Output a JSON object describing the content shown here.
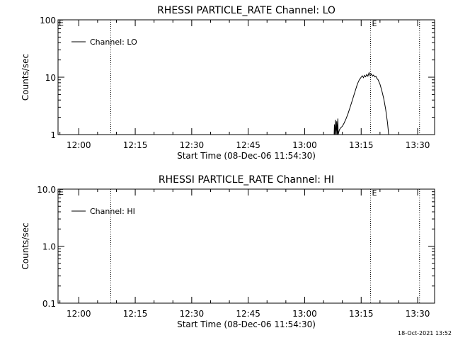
{
  "footer": {
    "timestamp": "18-Oct-2021 13:52"
  },
  "chart_data": [
    {
      "type": "line",
      "title": "RHESSI PARTICLE_RATE Channel: LO",
      "xlabel": "Start Time (08-Dec-06 11:54:30)",
      "ylabel": "Counts/sec",
      "yscale": "log",
      "ylim": [
        1,
        100
      ],
      "y_ticks": [
        {
          "v": 1,
          "label": "1"
        },
        {
          "v": 10,
          "label": "10"
        },
        {
          "v": 100,
          "label": "100"
        }
      ],
      "x_ticks": [
        "12:00",
        "12:15",
        "12:30",
        "12:45",
        "13:00",
        "13:15",
        "13:30"
      ],
      "x_unit": "minutes since 12:00",
      "xlim": [
        -5.5,
        94.5
      ],
      "legend": {
        "label": "Channel: LO",
        "placement": "top-left"
      },
      "markers": [
        {
          "x": 8.5,
          "style": "dotted"
        },
        {
          "x": 77.5,
          "style": "dotted",
          "label": "E"
        },
        {
          "x": 90.5,
          "style": "dotted"
        }
      ],
      "corner_label": "E",
      "series": [
        {
          "x": [
            67.8,
            67.9,
            68.0,
            68.2,
            68.3,
            68.4,
            68.5,
            68.7,
            68.8,
            68.9,
            69.2,
            69.5,
            70.0,
            70.5,
            71.0,
            71.5,
            72.0,
            72.5,
            73.0,
            73.5,
            74.0,
            74.5,
            75.0,
            75.3,
            75.6,
            75.9,
            76.2,
            76.5,
            76.8,
            77.1,
            77.4,
            77.7,
            78.0,
            78.3,
            78.6,
            78.9,
            79.2,
            79.5,
            80.0,
            80.5,
            81.0,
            81.5,
            82.0,
            82.3
          ],
          "y": [
            1.0,
            1.5,
            1.0,
            1.8,
            1.0,
            1.0,
            1.7,
            1.0,
            1.9,
            1.0,
            1.2,
            1.3,
            1.4,
            1.6,
            1.9,
            2.3,
            2.9,
            3.7,
            4.7,
            6.0,
            7.6,
            9.0,
            10.0,
            10.6,
            9.8,
            10.8,
            10.2,
            11.2,
            10.4,
            12.0,
            10.6,
            11.4,
            10.5,
            10.9,
            10.1,
            10.4,
            9.5,
            9.0,
            7.5,
            5.8,
            4.2,
            2.8,
            1.6,
            1.0
          ]
        }
      ]
    },
    {
      "type": "line",
      "title": "RHESSI PARTICLE_RATE Channel: HI",
      "xlabel": "Start Time (08-Dec-06 11:54:30)",
      "ylabel": "Counts/sec",
      "yscale": "log",
      "ylim": [
        0.1,
        10
      ],
      "y_ticks": [
        {
          "v": 0.1,
          "label": "0.1"
        },
        {
          "v": 1,
          "label": "1.0"
        },
        {
          "v": 10,
          "label": "10.0"
        }
      ],
      "x_ticks": [
        "12:00",
        "12:15",
        "12:30",
        "12:45",
        "13:00",
        "13:15",
        "13:30"
      ],
      "x_unit": "minutes since 12:00",
      "xlim": [
        -5.5,
        94.5
      ],
      "legend": {
        "label": "Channel: HI",
        "placement": "top-left"
      },
      "markers": [
        {
          "x": 8.5,
          "style": "dotted"
        },
        {
          "x": 77.5,
          "style": "dotted",
          "label": "E"
        },
        {
          "x": 90.5,
          "style": "dotted"
        }
      ],
      "corner_label": "E",
      "series": []
    }
  ]
}
